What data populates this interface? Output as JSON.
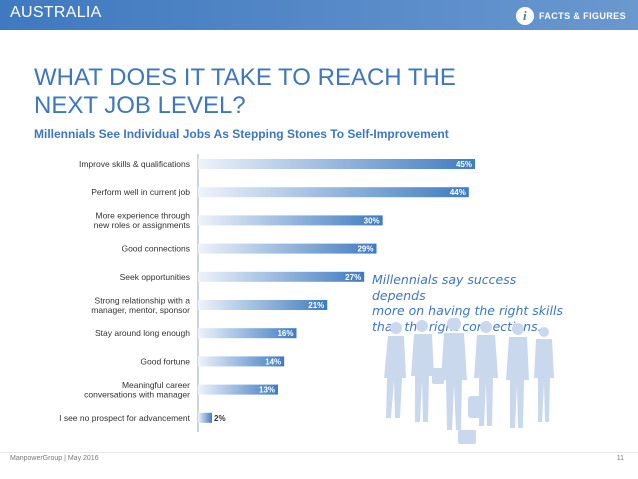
{
  "header": {
    "country": "AUSTRALIA",
    "badge_label": "FACTS & FIGURES",
    "badge_icon": "info-icon"
  },
  "page": {
    "title_line1": "WHAT DOES IT TAKE TO REACH THE",
    "title_line2": "NEXT JOB LEVEL?",
    "subtitle": "Millennials See Individual Jobs As Stepping Stones To Self-Improvement"
  },
  "callout": {
    "line1": "Millennials say success depends",
    "line2": "more on having the right skills",
    "line3": "than the right connections."
  },
  "footer": {
    "source": "ManpowerGroup | May 2016",
    "page_number": "11"
  },
  "colors": {
    "accent": "#3d77bd",
    "bar_light": "#e3ecf7",
    "bar_dark": "#3f7bc2",
    "label": "#333333"
  },
  "chart_data": {
    "type": "bar",
    "orientation": "horizontal",
    "title": "",
    "xlabel": "",
    "ylabel": "",
    "xlim": [
      0,
      100
    ],
    "categories": [
      [
        "Improve skills & qualifications"
      ],
      [
        "Perform well in current job"
      ],
      [
        "More experience through",
        "new roles or assignments"
      ],
      [
        "Good connections"
      ],
      [
        "Seek opportunities"
      ],
      [
        "Strong relationship with a",
        "manager, mentor, sponsor"
      ],
      [
        "Stay around long enough"
      ],
      [
        "Good fortune"
      ],
      [
        "Meaningful career",
        "conversations with manager"
      ],
      [
        "I see no prospect for advancement"
      ]
    ],
    "values": [
      45,
      44,
      30,
      29,
      27,
      21,
      16,
      14,
      13,
      2
    ],
    "data_labels": [
      "45%",
      "44%",
      "30%",
      "29%",
      "27%",
      "21%",
      "16%",
      "14%",
      "13%",
      "2%"
    ]
  }
}
